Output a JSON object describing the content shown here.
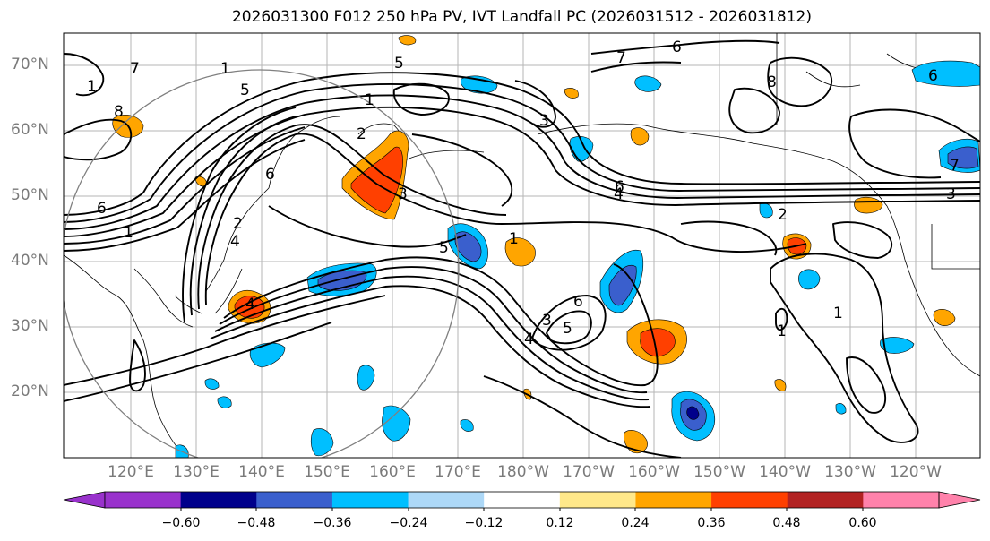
{
  "title": "2026031300 F012 250 hPa PV, IVT Landfall PC (2026031512 - 2026031812)",
  "latitude_labels": [
    "70°N",
    "60°N",
    "50°N",
    "40°N",
    "30°N",
    "20°N"
  ],
  "longitude_labels": [
    "120°E",
    "130°E",
    "140°E",
    "150°E",
    "160°E",
    "170°E",
    "180°W",
    "170°W",
    "160°W",
    "150°W",
    "140°W",
    "130°W",
    "120°W"
  ],
  "contour_labels": [
    "7",
    "1",
    "5",
    "1",
    "3",
    "6",
    "7",
    "8",
    "8",
    "6",
    "1",
    "2",
    "4",
    "6",
    "3",
    "2",
    "2",
    "4",
    "5",
    "1",
    "3",
    "5",
    "6",
    "4",
    "6",
    "1",
    "1",
    "1",
    "3",
    "7",
    "6",
    "4",
    "5"
  ],
  "colorbar": {
    "ticks": [
      "−0.60",
      "−0.48",
      "−0.36",
      "−0.24",
      "−0.12",
      "0.12",
      "0.24",
      "0.36",
      "0.48",
      "0.60"
    ],
    "colors": [
      "#9932cc",
      "#00008b",
      "#3a5fcd",
      "#00bfff",
      "#add8f7",
      "#ffffff",
      "#ffe88a",
      "#ffa500",
      "#ff4000",
      "#b22222",
      "#ff82ab"
    ]
  }
}
